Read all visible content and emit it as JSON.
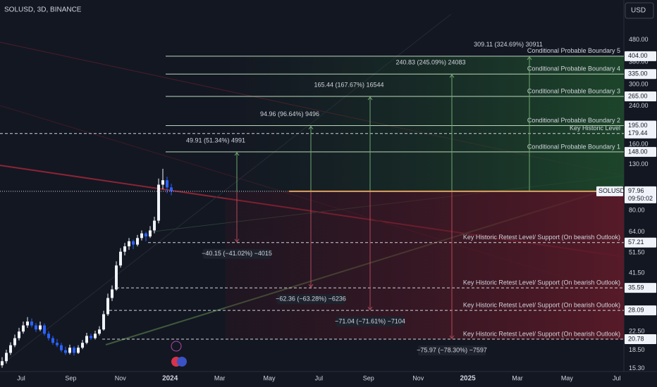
{
  "header": {
    "symbol": "SOLUSD, 3D, BINANCE",
    "currency": "USD"
  },
  "price_scale": {
    "log": true,
    "range": [
      14.8,
      728
    ],
    "ticks": [
      {
        "value": 480,
        "label": "480.00"
      },
      {
        "value": 380,
        "label": "380.00"
      },
      {
        "value": 300,
        "label": "300.00"
      },
      {
        "value": 240,
        "label": "240.00"
      },
      {
        "value": 160,
        "label": "160.00"
      },
      {
        "value": 130,
        "label": "130.00"
      },
      {
        "value": 80,
        "label": "80.00"
      },
      {
        "value": 64,
        "label": "64.00"
      },
      {
        "value": 51.5,
        "label": "51.50"
      },
      {
        "value": 41.5,
        "label": "41.50"
      },
      {
        "value": 22.5,
        "label": "22.50"
      },
      {
        "value": 18.5,
        "label": "18.50"
      },
      {
        "value": 15.3,
        "label": "15.30"
      }
    ]
  },
  "time_axis": {
    "labels": [
      "Jul",
      "Sep",
      "Nov",
      "2024",
      "Mar",
      "May",
      "Jul",
      "Sep",
      "Nov",
      "2025",
      "Mar",
      "May",
      "Jul"
    ]
  },
  "candles": [
    [
      15.8,
      17.2,
      15.4,
      16.5
    ],
    [
      16.5,
      18.6,
      16.1,
      18
    ],
    [
      18,
      20.1,
      17.6,
      19.5
    ],
    [
      19.5,
      21.8,
      19.1,
      21
    ],
    [
      21,
      23.4,
      20.5,
      22.5
    ],
    [
      22.5,
      25,
      22,
      24
    ],
    [
      24,
      26.2,
      23.4,
      25
    ],
    [
      25,
      25.8,
      23.5,
      24
    ],
    [
      24,
      24.6,
      22.4,
      23
    ],
    [
      23,
      25,
      22.6,
      24
    ],
    [
      24,
      24.5,
      21.6,
      22
    ],
    [
      22,
      22.6,
      20.5,
      21
    ],
    [
      21,
      21.5,
      19.6,
      20
    ],
    [
      20,
      20.8,
      19.1,
      19.5
    ],
    [
      19.5,
      20,
      18.1,
      18.5
    ],
    [
      18.5,
      19.2,
      17.6,
      18
    ],
    [
      18,
      19.6,
      17.7,
      19
    ],
    [
      19,
      19.3,
      17.5,
      18
    ],
    [
      18,
      19.5,
      17.8,
      19
    ],
    [
      19,
      20.6,
      18.7,
      20
    ],
    [
      20,
      22.2,
      19.7,
      21.5
    ],
    [
      21.5,
      22,
      20.6,
      21
    ],
    [
      21,
      22.7,
      20.7,
      22
    ],
    [
      22,
      23.8,
      21.6,
      23
    ],
    [
      23,
      28,
      22.7,
      27
    ],
    [
      27,
      33.5,
      26.5,
      32
    ],
    [
      32,
      36.5,
      31,
      35
    ],
    [
      35,
      47,
      34.5,
      45
    ],
    [
      45,
      54,
      44,
      52
    ],
    [
      52,
      57,
      50,
      55
    ],
    [
      55,
      60,
      53,
      58
    ],
    [
      58,
      59,
      53.5,
      56
    ],
    [
      56,
      62,
      55,
      60
    ],
    [
      60,
      65,
      58.5,
      63
    ],
    [
      63,
      64,
      58,
      61
    ],
    [
      61,
      68,
      60,
      65
    ],
    [
      65,
      75,
      63,
      72
    ],
    [
      72,
      112,
      70,
      105
    ],
    [
      105,
      124,
      100,
      110
    ],
    [
      110,
      114,
      96,
      102
    ],
    [
      102,
      106,
      94,
      98
    ]
  ],
  "current_price": {
    "symbol": "SOLUSD",
    "value": 97.96,
    "label": "97.96",
    "countdown": "09:50:02"
  },
  "key_level": {
    "name": "Key Historic Level",
    "value": 179.44,
    "label": "179.44"
  },
  "boundaries": [
    {
      "name": "Conditional Probable Boundary 1",
      "value": 148,
      "label": "148.00",
      "measure": "49.91 (51.34%) 4991"
    },
    {
      "name": "Conditional Probable Boundary 2",
      "value": 195,
      "label": "195.00",
      "measure": "94.96 (96.64%) 9496"
    },
    {
      "name": "Conditional Probable Boundary 3",
      "value": 265,
      "label": "265.00",
      "measure": "165.44 (167.67%) 16544"
    },
    {
      "name": "Conditional Probable Boundary 4",
      "value": 335,
      "label": "335.00",
      "measure": "240.83 (245.09%) 24083"
    },
    {
      "name": "Conditional Probable Boundary 5",
      "value": 404,
      "label": "404.00",
      "measure": "309.11 (324.69%) 30911"
    }
  ],
  "supports": [
    {
      "name": "Key Historic Retest Level/ Support (On bearish Outlook)",
      "value": 57.21,
      "label": "57.21",
      "measure": "−40.15 (−41.02%) −4015"
    },
    {
      "name": "Key Historic Retest Level/ Support (On bearish Outlook)",
      "value": 35.59,
      "label": "35.59",
      "measure": "−62.36 (−63.28%) −6236"
    },
    {
      "name": "Key Historic Retest Level/ Support (On bearish Outlook)",
      "value": 28.09,
      "label": "28.09",
      "measure": "−71.04 (−71.61%) −7104"
    },
    {
      "name": "Key Historic Retest Level/ Support (On bearish Outlook)",
      "value": 20.78,
      "label": "20.78",
      "measure": "−75.97 (−78.30%) −7597"
    }
  ]
}
